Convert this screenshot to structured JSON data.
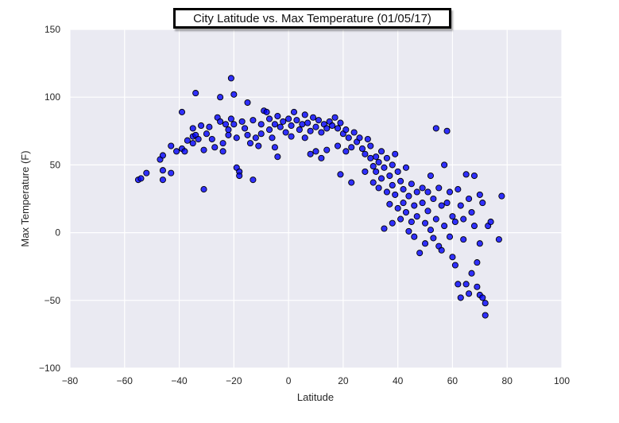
{
  "chart_data": {
    "type": "scatter",
    "title": "City Latitude vs. Max Temperature (01/05/17)",
    "xlabel": "Latitude",
    "ylabel": "Max Temperature (F)",
    "xlim": [
      -80,
      100
    ],
    "ylim": [
      -100,
      150
    ],
    "xticks": [
      -80,
      -60,
      -40,
      -20,
      0,
      20,
      40,
      60,
      80,
      100
    ],
    "yticks": [
      -100,
      -50,
      0,
      50,
      100,
      150
    ],
    "xtick_labels": [
      "−80",
      "−60",
      "−40",
      "−20",
      "0",
      "20",
      "40",
      "60",
      "80",
      "100"
    ],
    "ytick_labels": [
      "−100",
      "−50",
      "0",
      "50",
      "100",
      "150"
    ],
    "grid": true,
    "background_color": "#EAEAF2",
    "grid_color": "#FFFFFF",
    "marker_color": "#0000FF",
    "marker_edge_color": "#000000",
    "legend": null,
    "points": [
      [
        -55,
        39
      ],
      [
        -54,
        40
      ],
      [
        -52,
        44
      ],
      [
        -47,
        54
      ],
      [
        -46,
        57
      ],
      [
        -46,
        46
      ],
      [
        -46,
        39
      ],
      [
        -43,
        64
      ],
      [
        -43,
        44
      ],
      [
        -41,
        60
      ],
      [
        -39,
        62
      ],
      [
        -39,
        89
      ],
      [
        -38,
        60
      ],
      [
        -37,
        68
      ],
      [
        -35,
        77
      ],
      [
        -35,
        71
      ],
      [
        -35,
        66
      ],
      [
        -34,
        103
      ],
      [
        -34,
        72
      ],
      [
        -33,
        69
      ],
      [
        -32,
        79
      ],
      [
        -31,
        32
      ],
      [
        -31,
        61
      ],
      [
        -30,
        73
      ],
      [
        -29,
        78
      ],
      [
        -28,
        69
      ],
      [
        -27,
        63
      ],
      [
        -26,
        85
      ],
      [
        -25,
        100
      ],
      [
        -25,
        82
      ],
      [
        -24,
        66
      ],
      [
        -24,
        60
      ],
      [
        -23,
        80
      ],
      [
        -22,
        76
      ],
      [
        -22,
        72
      ],
      [
        -21,
        84
      ],
      [
        -21,
        114
      ],
      [
        -20,
        102
      ],
      [
        -20,
        80
      ],
      [
        -19,
        70
      ],
      [
        -19,
        48
      ],
      [
        -18,
        45
      ],
      [
        -18,
        42
      ],
      [
        -17,
        82
      ],
      [
        -16,
        77
      ],
      [
        -15,
        96
      ],
      [
        -15,
        72
      ],
      [
        -14,
        66
      ],
      [
        -13,
        83
      ],
      [
        -13,
        39
      ],
      [
        -12,
        70
      ],
      [
        -11,
        64
      ],
      [
        -10,
        80
      ],
      [
        -10,
        73
      ],
      [
        -9,
        90
      ],
      [
        -8,
        89
      ],
      [
        -7,
        84
      ],
      [
        -7,
        76
      ],
      [
        -6,
        70
      ],
      [
        -5,
        80
      ],
      [
        -5,
        63
      ],
      [
        -4,
        86
      ],
      [
        -4,
        56
      ],
      [
        -3,
        78
      ],
      [
        -2,
        82
      ],
      [
        -1,
        74
      ],
      [
        0,
        84
      ],
      [
        1,
        79
      ],
      [
        1,
        71
      ],
      [
        2,
        89
      ],
      [
        3,
        83
      ],
      [
        4,
        76
      ],
      [
        5,
        80
      ],
      [
        6,
        87
      ],
      [
        6,
        70
      ],
      [
        7,
        81
      ],
      [
        8,
        75
      ],
      [
        8,
        58
      ],
      [
        9,
        85
      ],
      [
        10,
        78
      ],
      [
        10,
        60
      ],
      [
        11,
        83
      ],
      [
        12,
        74
      ],
      [
        12,
        55
      ],
      [
        13,
        80
      ],
      [
        14,
        77
      ],
      [
        14,
        61
      ],
      [
        15,
        82
      ],
      [
        16,
        79
      ],
      [
        17,
        85
      ],
      [
        18,
        77
      ],
      [
        18,
        64
      ],
      [
        19,
        81
      ],
      [
        19,
        43
      ],
      [
        20,
        73
      ],
      [
        21,
        76
      ],
      [
        21,
        60
      ],
      [
        22,
        70
      ],
      [
        23,
        63
      ],
      [
        23,
        37
      ],
      [
        24,
        74
      ],
      [
        25,
        67
      ],
      [
        26,
        70
      ],
      [
        27,
        62
      ],
      [
        28,
        45
      ],
      [
        28,
        58
      ],
      [
        29,
        69
      ],
      [
        30,
        55
      ],
      [
        30,
        64
      ],
      [
        31,
        49
      ],
      [
        31,
        37
      ],
      [
        32,
        56
      ],
      [
        32,
        45
      ],
      [
        33,
        52
      ],
      [
        33,
        33
      ],
      [
        34,
        60
      ],
      [
        34,
        40
      ],
      [
        35,
        48
      ],
      [
        35,
        3
      ],
      [
        36,
        55
      ],
      [
        36,
        30
      ],
      [
        37,
        42
      ],
      [
        37,
        21
      ],
      [
        38,
        50
      ],
      [
        38,
        35
      ],
      [
        38,
        7
      ],
      [
        39,
        58
      ],
      [
        39,
        28
      ],
      [
        40,
        45
      ],
      [
        40,
        18
      ],
      [
        41,
        38
      ],
      [
        41,
        10
      ],
      [
        42,
        32
      ],
      [
        42,
        22
      ],
      [
        43,
        48
      ],
      [
        43,
        15
      ],
      [
        44,
        27
      ],
      [
        44,
        1
      ],
      [
        45,
        36
      ],
      [
        45,
        8
      ],
      [
        46,
        20
      ],
      [
        46,
        -3
      ],
      [
        47,
        30
      ],
      [
        47,
        12
      ],
      [
        48,
        -15
      ],
      [
        49,
        22
      ],
      [
        49,
        33
      ],
      [
        50,
        7
      ],
      [
        50,
        -8
      ],
      [
        51,
        30
      ],
      [
        51,
        16
      ],
      [
        52,
        2
      ],
      [
        52,
        42
      ],
      [
        53,
        25
      ],
      [
        53,
        -4
      ],
      [
        54,
        77
      ],
      [
        54,
        10
      ],
      [
        55,
        33
      ],
      [
        55,
        -10
      ],
      [
        56,
        20
      ],
      [
        56,
        -13
      ],
      [
        57,
        5
      ],
      [
        57,
        50
      ],
      [
        58,
        75
      ],
      [
        58,
        22
      ],
      [
        59,
        30
      ],
      [
        59,
        -3
      ],
      [
        60,
        12
      ],
      [
        60,
        -18
      ],
      [
        61,
        -24
      ],
      [
        61,
        8
      ],
      [
        62,
        32
      ],
      [
        62,
        -38
      ],
      [
        63,
        20
      ],
      [
        63,
        -48
      ],
      [
        64,
        10
      ],
      [
        64,
        -5
      ],
      [
        65,
        43
      ],
      [
        65,
        -38
      ],
      [
        66,
        25
      ],
      [
        66,
        -45
      ],
      [
        67,
        15
      ],
      [
        67,
        -30
      ],
      [
        68,
        42
      ],
      [
        68,
        5
      ],
      [
        69,
        -40
      ],
      [
        69,
        -22
      ],
      [
        70,
        28
      ],
      [
        70,
        -8
      ],
      [
        70,
        -46
      ],
      [
        71,
        22
      ],
      [
        71,
        -48
      ],
      [
        72,
        -52
      ],
      [
        72,
        -61
      ],
      [
        73,
        5
      ],
      [
        74,
        8
      ],
      [
        77,
        -5
      ],
      [
        78,
        27
      ]
    ]
  }
}
